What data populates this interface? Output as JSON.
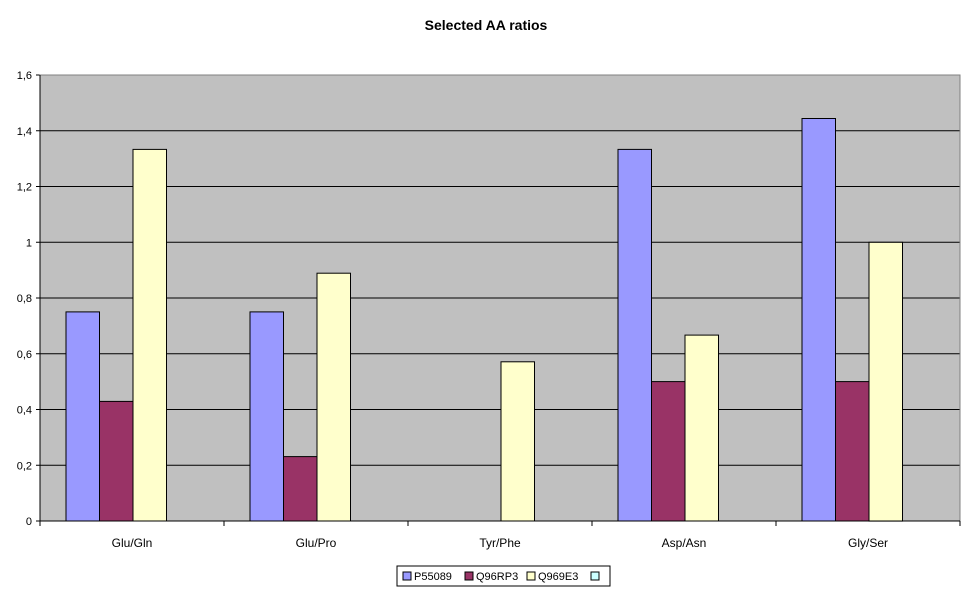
{
  "chart_data": {
    "type": "bar",
    "title": "Selected AA ratios",
    "xlabel": "",
    "ylabel": "",
    "categories": [
      "Glu/Gln",
      "Glu/Pro",
      "Tyr/Phe",
      "Asp/Asn",
      "Gly/Ser"
    ],
    "series": [
      {
        "name": "P55089",
        "values": [
          0.75,
          0.75,
          0,
          1.333,
          1.444
        ]
      },
      {
        "name": "Q96RP3",
        "values": [
          0.429,
          0.231,
          0,
          0.5,
          0.5
        ]
      },
      {
        "name": "Q969E3",
        "values": [
          1.333,
          0.889,
          0.571,
          0.667,
          1.0
        ]
      },
      {
        "name": "",
        "values": [
          0,
          0,
          0,
          0,
          0
        ]
      }
    ],
    "ylim": [
      0,
      1.6
    ],
    "yticks": [
      "0",
      "0,2",
      "0,4",
      "0,6",
      "0,8",
      "1",
      "1,2",
      "1,4",
      "1,6"
    ],
    "grid": true,
    "legend_position": "bottom",
    "colors": {
      "series": [
        "#9999ff",
        "#993366",
        "#ffffcc",
        "#ccffff"
      ],
      "plot_background": "#c0c0c0",
      "gridline": "#000000",
      "outline": "#000000"
    }
  }
}
